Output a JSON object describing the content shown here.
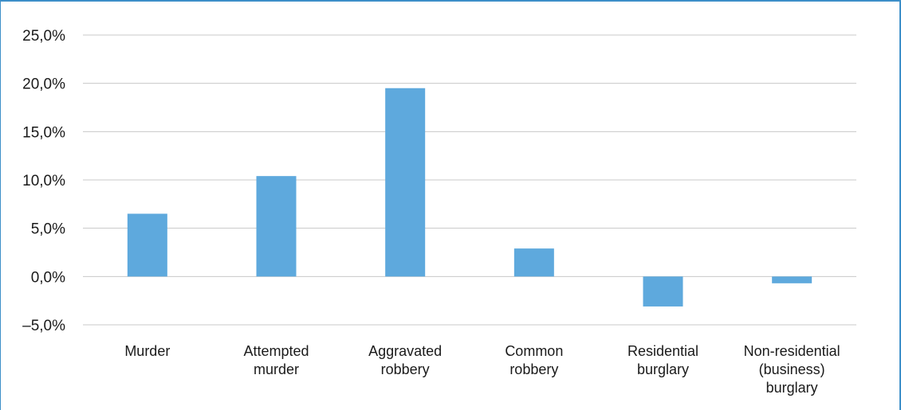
{
  "chart_data": {
    "type": "bar",
    "categories": [
      [
        "Murder"
      ],
      [
        "Attempted",
        "murder"
      ],
      [
        "Aggravated",
        "robbery"
      ],
      [
        "Common",
        "robbery"
      ],
      [
        "Residential",
        "burglary"
      ],
      [
        "Non-residential",
        "(business)",
        "burglary"
      ]
    ],
    "values": [
      6.5,
      10.4,
      19.5,
      2.9,
      -3.1,
      -0.7
    ],
    "y_ticks": [
      "25,0%",
      "20,0%",
      "15,0%",
      "10,0%",
      "5,0%",
      "0,0%",
      "–5,0%"
    ],
    "ylim": [
      -5,
      25
    ],
    "grid": true,
    "bar_color": "#5ea9dd",
    "grid_color": "#c8c8c8",
    "frame_color": "#3d8fc9"
  }
}
